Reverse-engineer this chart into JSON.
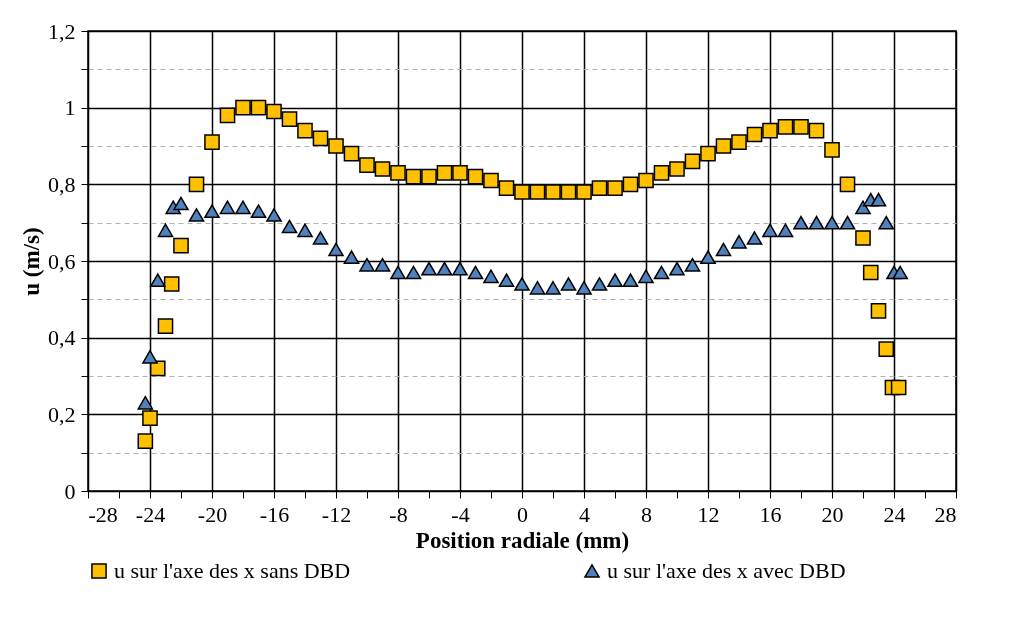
{
  "chart_data": {
    "type": "scatter",
    "xlabel": "Position radiale (mm)",
    "ylabel": "u (m/s)",
    "xlim": [
      -28,
      28
    ],
    "ylim": [
      0,
      1.2
    ],
    "xticks": [
      -28,
      {
        "value": -26,
        "label": null
      },
      -24,
      {
        "value": -22,
        "label": null
      },
      -20,
      {
        "value": -18,
        "label": null
      },
      -16,
      {
        "value": -14,
        "label": null
      },
      -12,
      {
        "value": -10,
        "label": null
      },
      -8,
      {
        "value": -6,
        "label": null
      },
      -4,
      {
        "value": -2,
        "label": null
      },
      0,
      {
        "value": 2,
        "label": null
      },
      4,
      {
        "value": 6,
        "label": null
      },
      8,
      {
        "value": 10,
        "label": null
      },
      12,
      {
        "value": 14,
        "label": null
      },
      16,
      {
        "value": 18,
        "label": null
      },
      20,
      {
        "value": 22,
        "label": null
      },
      24,
      {
        "value": 26,
        "label": null
      },
      28
    ],
    "yticks": [
      0,
      {
        "value": 0.1,
        "label": null
      },
      {
        "value": 0.2,
        "label": "0,2"
      },
      {
        "value": 0.3,
        "label": null
      },
      {
        "value": 0.4,
        "label": "0,4"
      },
      {
        "value": 0.5,
        "label": null
      },
      {
        "value": 0.6,
        "label": "0,6"
      },
      {
        "value": 0.7,
        "label": null
      },
      {
        "value": 0.8,
        "label": "0,8"
      },
      {
        "value": 0.9,
        "label": null
      },
      1,
      {
        "value": 1.1,
        "label": null
      },
      {
        "value": 1.2,
        "label": "1,2"
      }
    ],
    "grid": true,
    "legend": "bottom",
    "series": [
      {
        "name": "u sur l'axe des x sans DBD",
        "color": "#ffc000",
        "marker": "square",
        "x": [
          -24.3,
          -24.0,
          -23.5,
          -23.0,
          -22.6,
          -22.0,
          -21,
          -20,
          -19,
          -18,
          -17,
          -16,
          -15,
          -14,
          -13,
          -12,
          -11,
          -10,
          -9,
          -8,
          -7,
          -6,
          -5,
          -4,
          -3,
          -2,
          -1,
          0,
          1,
          2,
          3,
          4,
          5,
          6,
          7,
          8,
          9,
          10,
          11,
          12,
          13,
          14,
          15,
          16,
          17,
          18,
          19,
          20,
          21,
          22,
          22.5,
          23,
          23.5,
          23.9,
          24.3
        ],
        "values": [
          0.13,
          0.19,
          0.32,
          0.43,
          0.54,
          0.64,
          0.8,
          0.91,
          0.98,
          1.0,
          1.0,
          0.99,
          0.97,
          0.94,
          0.92,
          0.9,
          0.88,
          0.85,
          0.84,
          0.83,
          0.82,
          0.82,
          0.83,
          0.83,
          0.82,
          0.81,
          0.79,
          0.78,
          0.78,
          0.78,
          0.78,
          0.78,
          0.79,
          0.79,
          0.8,
          0.81,
          0.83,
          0.84,
          0.86,
          0.88,
          0.9,
          0.91,
          0.93,
          0.94,
          0.95,
          0.95,
          0.94,
          0.89,
          0.8,
          0.66,
          0.57,
          0.47,
          0.37,
          0.27,
          0.27
        ]
      },
      {
        "name": "u sur l'axe des x avec DBD",
        "color": "#4f81bd",
        "marker": "triangle",
        "x": [
          -24.3,
          -24.0,
          -23.5,
          -23.0,
          -22.5,
          -22.0,
          -21,
          -20,
          -19,
          -18,
          -17,
          -16,
          -15,
          -14,
          -13,
          -12,
          -11,
          -10,
          -9,
          -8,
          -7,
          -6,
          -5,
          -4,
          -3,
          -2,
          -1,
          0,
          1,
          2,
          3,
          4,
          5,
          6,
          7,
          8,
          9,
          10,
          11,
          12,
          13,
          14,
          15,
          16,
          17,
          18,
          19,
          20,
          21,
          22,
          22.5,
          23,
          23.5,
          24.0,
          24.4
        ],
        "values": [
          0.23,
          0.35,
          0.55,
          0.68,
          0.74,
          0.75,
          0.72,
          0.73,
          0.74,
          0.74,
          0.73,
          0.72,
          0.69,
          0.68,
          0.66,
          0.63,
          0.61,
          0.59,
          0.59,
          0.57,
          0.57,
          0.58,
          0.58,
          0.58,
          0.57,
          0.56,
          0.55,
          0.54,
          0.53,
          0.53,
          0.54,
          0.53,
          0.54,
          0.55,
          0.55,
          0.56,
          0.57,
          0.58,
          0.59,
          0.61,
          0.63,
          0.65,
          0.66,
          0.68,
          0.68,
          0.7,
          0.7,
          0.7,
          0.7,
          0.74,
          0.76,
          0.76,
          0.7,
          0.57,
          0.57
        ]
      }
    ]
  }
}
